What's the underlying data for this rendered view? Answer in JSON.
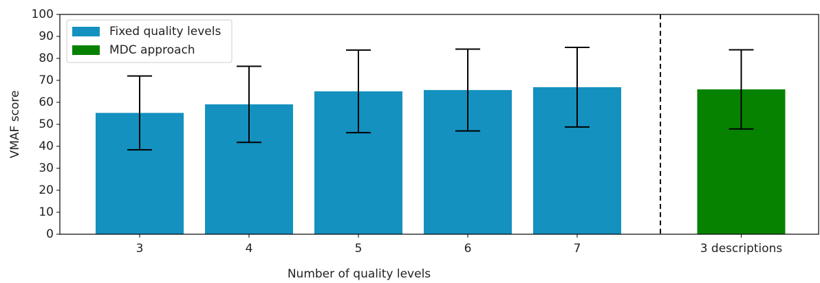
{
  "chart_data": {
    "type": "bar",
    "categories": [
      "3",
      "4",
      "5",
      "6",
      "7",
      "3 descriptions"
    ],
    "series": [
      {
        "name": "Fixed quality levels",
        "color": "#1491bf",
        "values": [
          55.2,
          59.1,
          65.0,
          65.6,
          66.9,
          null
        ],
        "errors": [
          16.8,
          17.3,
          18.8,
          18.6,
          18.1,
          null
        ]
      },
      {
        "name": "MDC approach",
        "color": "#078200",
        "values": [
          null,
          null,
          null,
          null,
          null,
          65.9
        ],
        "errors": [
          null,
          null,
          null,
          null,
          null,
          18.0
        ]
      }
    ],
    "xlabel": "Number of quality levels",
    "ylabel": "VMAF score",
    "ylim": [
      0,
      100
    ],
    "yticks": [
      0,
      10,
      20,
      30,
      40,
      50,
      60,
      70,
      80,
      90,
      100
    ],
    "legend": "upper left"
  }
}
